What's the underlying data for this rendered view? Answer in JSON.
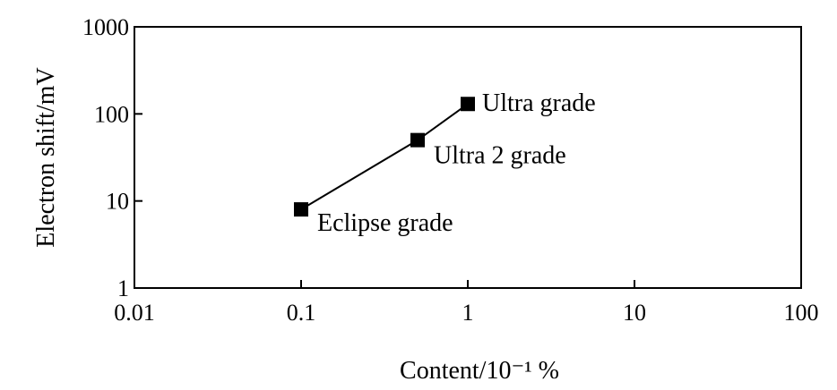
{
  "chart_data": {
    "type": "line",
    "xlabel": "Content/10⁻¹ %",
    "ylabel": "Electron shift/mV",
    "x_scale": "log",
    "y_scale": "log",
    "xlim": [
      0.01,
      100
    ],
    "ylim": [
      1,
      1000
    ],
    "x_ticks": [
      {
        "value": 0.01,
        "label": "0.01"
      },
      {
        "value": 0.1,
        "label": "0.1"
      },
      {
        "value": 1,
        "label": "1"
      },
      {
        "value": 10,
        "label": "10"
      },
      {
        "value": 100,
        "label": "100"
      }
    ],
    "y_ticks": [
      {
        "value": 1,
        "label": "1"
      },
      {
        "value": 10,
        "label": "10"
      },
      {
        "value": 100,
        "label": "100"
      },
      {
        "value": 1000,
        "label": "1000"
      }
    ],
    "grid": false,
    "series": [
      {
        "marker": "square",
        "color": "#000000",
        "points": [
          {
            "x": 0.1,
            "y": 8,
            "label": "Eclipse grade"
          },
          {
            "x": 0.5,
            "y": 50,
            "label": "Ultra 2 grade"
          },
          {
            "x": 1,
            "y": 130,
            "label": "Ultra grade"
          }
        ]
      }
    ]
  }
}
